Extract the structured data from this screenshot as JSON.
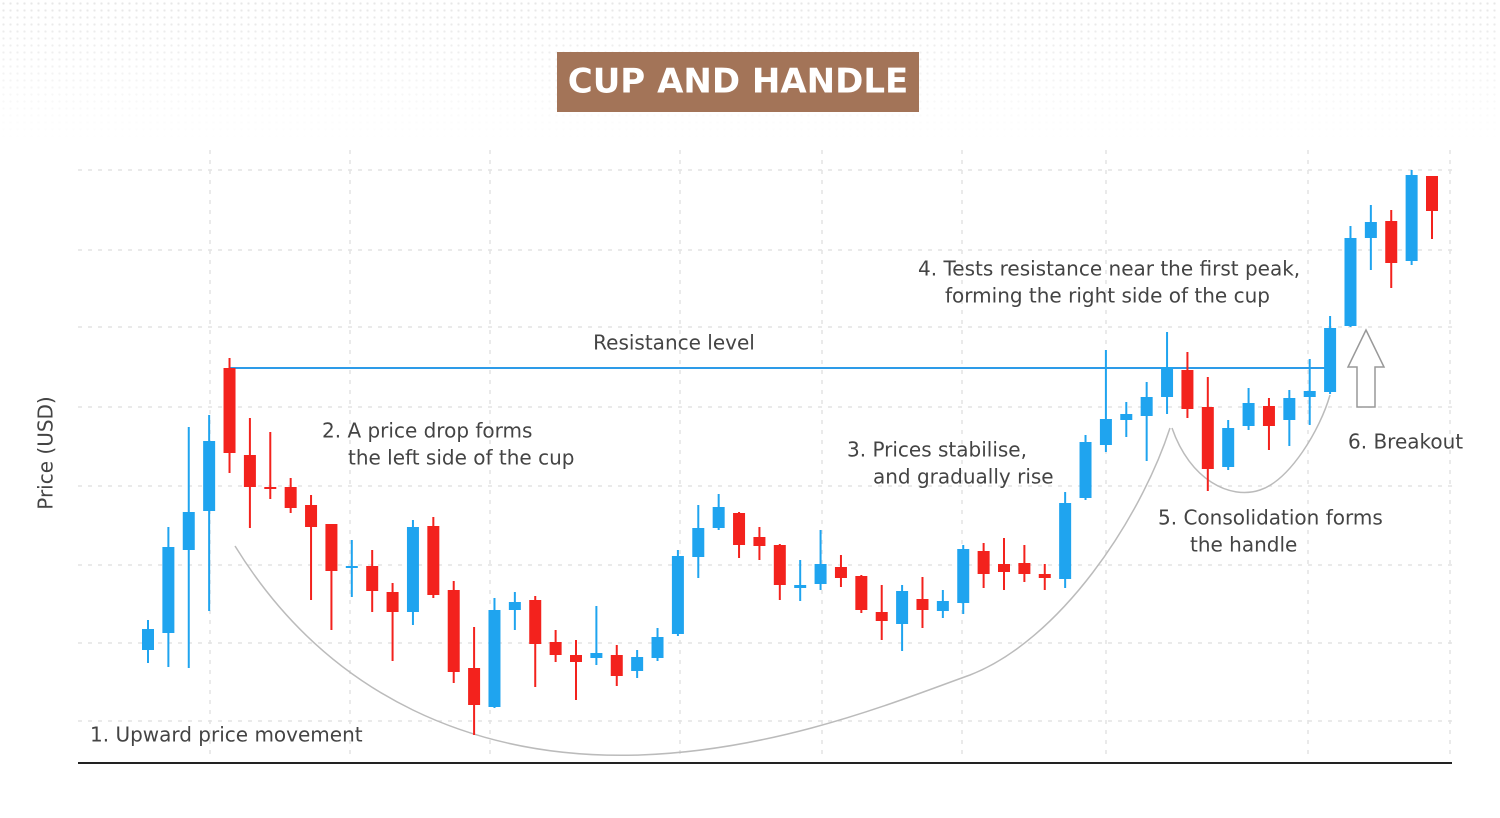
{
  "chart_data": {
    "type": "candlestick",
    "title": "CUP AND HANDLE",
    "y_label": "Price (USD)",
    "up_color": "#1fa4ef",
    "down_color": "#f3221d",
    "ylim": [
      40,
      640
    ],
    "resistance": {
      "label": "Resistance level",
      "value": 432,
      "color": "#2d9be8"
    },
    "annotations": [
      {
        "lines": [
          "1. Upward price movement"
        ]
      },
      {
        "lines": [
          "2. A price drop forms",
          "the left side of the cup"
        ]
      },
      {
        "lines": [
          "3. Prices stabilise,",
          "and gradually rise"
        ]
      },
      {
        "lines": [
          "4. Tests resistance near the first peak,",
          "forming the right side of the cup"
        ]
      },
      {
        "lines": [
          "5. Consolidation forms",
          "the handle"
        ]
      },
      {
        "lines": [
          "6. Breakout"
        ]
      }
    ],
    "open": [
      150,
      167,
      250,
      289,
      432,
      345,
      313,
      313,
      295,
      276,
      232,
      234,
      208,
      188,
      274,
      210,
      132,
      93,
      190,
      200,
      158,
      145,
      142,
      145,
      129,
      142,
      166,
      243,
      272,
      287,
      263,
      255,
      212,
      216,
      233,
      224,
      188,
      176,
      201,
      189,
      197,
      249,
      236,
      237,
      226,
      221,
      302,
      355,
      380,
      384,
      403,
      430,
      393,
      333,
      374,
      394,
      380,
      403,
      408,
      474,
      562,
      579,
      539,
      624
    ],
    "high": [
      180,
      273,
      373,
      385,
      442,
      382,
      368,
      322,
      305,
      276,
      260,
      250,
      217,
      280,
      283,
      219,
      173,
      202,
      208,
      204,
      170,
      160,
      194,
      155,
      150,
      172,
      250,
      295,
      306,
      288,
      273,
      256,
      240,
      270,
      245,
      225,
      215,
      215,
      223,
      210,
      255,
      257,
      262,
      255,
      236,
      308,
      365,
      450,
      398,
      418,
      468,
      448,
      423,
      380,
      412,
      402,
      410,
      441,
      484,
      574,
      595,
      590,
      630,
      624
    ],
    "low": [
      137,
      133,
      132,
      189,
      327,
      272,
      301,
      287,
      200,
      170,
      203,
      188,
      139,
      175,
      202,
      117,
      65,
      92,
      170,
      113,
      138,
      100,
      135,
      114,
      122,
      139,
      164,
      222,
      270,
      242,
      240,
      200,
      199,
      210,
      213,
      187,
      160,
      149,
      172,
      182,
      186,
      212,
      210,
      218,
      210,
      212,
      300,
      348,
      363,
      339,
      386,
      382,
      309,
      330,
      370,
      350,
      354,
      375,
      406,
      473,
      530,
      512,
      535,
      561
    ],
    "close": [
      171,
      253,
      288,
      359,
      347,
      313,
      311,
      292,
      273,
      229,
      234,
      209,
      188,
      273,
      205,
      128,
      95,
      190,
      198,
      156,
      145,
      138,
      147,
      124,
      143,
      163,
      244,
      272,
      293,
      255,
      254,
      215,
      215,
      236,
      222,
      190,
      179,
      209,
      190,
      199,
      251,
      226,
      228,
      226,
      222,
      297,
      358,
      381,
      386,
      403,
      433,
      391,
      331,
      372,
      397,
      374,
      402,
      409,
      472,
      562,
      578,
      537,
      625,
      589
    ]
  }
}
